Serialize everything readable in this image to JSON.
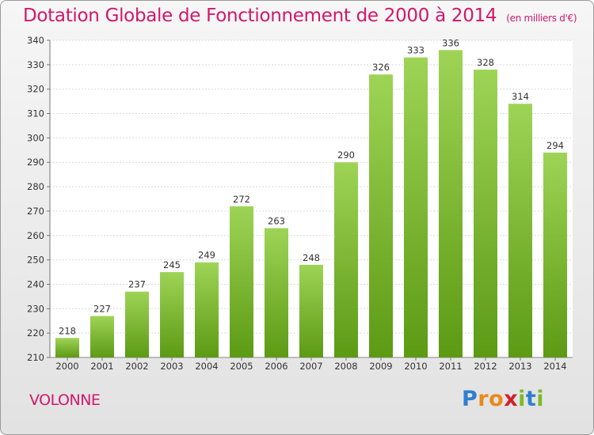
{
  "chart_data": {
    "type": "bar",
    "title": "Dotation Globale de Fonctionnement de 2000 à 2014",
    "subtitle": "(en milliers d'€)",
    "categories": [
      "2000",
      "2001",
      "2002",
      "2003",
      "2004",
      "2005",
      "2006",
      "2007",
      "2008",
      "2009",
      "2010",
      "2011",
      "2012",
      "2013",
      "2014"
    ],
    "values": [
      218,
      227,
      237,
      245,
      249,
      272,
      263,
      248,
      290,
      326,
      333,
      336,
      328,
      314,
      294
    ],
    "ylim": [
      210,
      340
    ],
    "yticks": [
      210,
      220,
      230,
      240,
      250,
      260,
      270,
      280,
      290,
      300,
      310,
      320,
      330,
      340
    ],
    "grid": true,
    "bar_color_top": "#9ed456",
    "bar_color_bottom": "#5c9a14"
  },
  "commune": "VOLONNE",
  "logo": {
    "letters": [
      "P",
      "r",
      "o",
      "x",
      "i",
      "t",
      "i"
    ],
    "colors": [
      "#2f7fcf",
      "#e98a1a",
      "#e98a1a",
      "#d21f2c",
      "#7cba2a",
      "#2f7fcf",
      "#7cba2a"
    ]
  }
}
